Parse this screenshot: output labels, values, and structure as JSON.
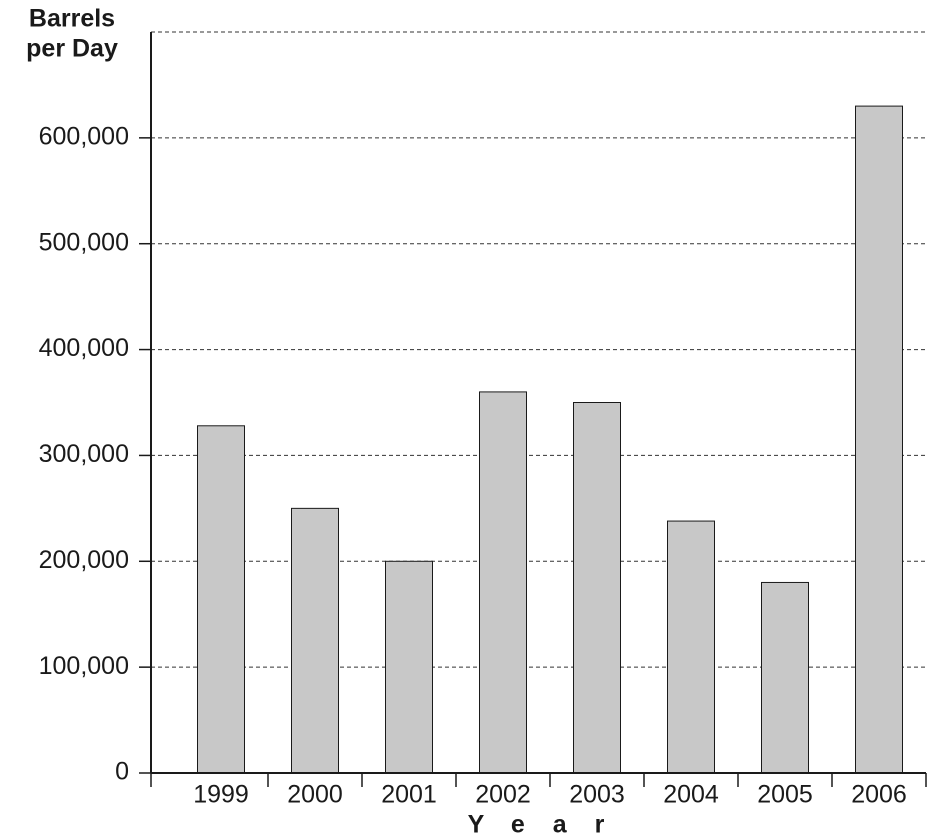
{
  "chart_data": {
    "type": "bar",
    "y_label_lines": [
      "Barrels",
      "per Day"
    ],
    "x_label": "Year",
    "categories": [
      "1999",
      "2000",
      "2001",
      "2002",
      "2003",
      "2004",
      "2005",
      "2006"
    ],
    "values": [
      328000,
      250000,
      200000,
      360000,
      350000,
      238000,
      180000,
      630000
    ],
    "color": "#c8c8c8",
    "ylim": [
      0,
      700000
    ],
    "yticks": [
      0,
      {
        "value": 100000,
        "label": "100,000"
      },
      {
        "value": 200000,
        "label": "200,000"
      },
      {
        "value": 300000,
        "label": "300,000"
      },
      {
        "value": 400000,
        "label": "400,000"
      },
      {
        "value": 500000,
        "label": "500,000"
      },
      {
        "value": 600000,
        "label": "600,000"
      }
    ],
    "grid": true
  }
}
